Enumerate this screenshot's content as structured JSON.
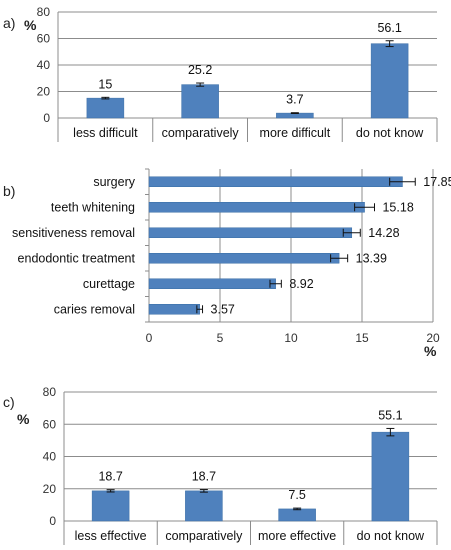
{
  "chart_data": [
    {
      "panel": "a)",
      "type": "bar",
      "orientation": "vertical",
      "categories": [
        "less difficult",
        "comparatively",
        "more difficult",
        "do not know"
      ],
      "values": [
        15,
        25.2,
        3.7,
        56.1
      ],
      "value_labels": [
        "15",
        "25.2",
        "3.7",
        "56.1"
      ],
      "error": [
        0.6,
        1.2,
        0.3,
        2.2
      ],
      "ylabel": "%",
      "ylim": [
        0,
        80
      ],
      "yticks": [
        "0",
        "20",
        "40",
        "60",
        "80"
      ],
      "grid": "horizontal"
    },
    {
      "panel": "b)",
      "type": "bar",
      "orientation": "horizontal",
      "categories": [
        "surgery",
        "teeth whitening",
        "sensitiveness removal",
        "endodontic treatment",
        "curettage",
        "caries removal"
      ],
      "values": [
        17.85,
        15.18,
        14.28,
        13.39,
        8.92,
        3.57
      ],
      "value_labels": [
        "17.85",
        "15.18",
        "14.28",
        "13.39",
        "8.92",
        "3.57"
      ],
      "error": [
        0.9,
        0.7,
        0.6,
        0.6,
        0.4,
        0.2
      ],
      "xlabel": "%",
      "xlim": [
        0,
        20
      ],
      "xticks": [
        "0",
        "5",
        "10",
        "15",
        "20"
      ],
      "grid": "vertical"
    },
    {
      "panel": "c)",
      "type": "bar",
      "orientation": "vertical",
      "categories": [
        "less effective",
        "comparatively",
        "more effective",
        "do not know"
      ],
      "values": [
        18.7,
        18.7,
        7.5,
        55.1
      ],
      "value_labels": [
        "18.7",
        "18.7",
        "7.5",
        "55.1"
      ],
      "error": [
        0.7,
        0.8,
        0.5,
        2.3
      ],
      "ylabel": "%",
      "ylim": [
        0,
        80
      ],
      "yticks": [
        "0",
        "20",
        "40",
        "60",
        "80"
      ],
      "grid": "horizontal"
    }
  ],
  "colors": {
    "bar": "#4f81bd",
    "bar_edge": "#3a6ea5",
    "grid": "#8c8c8c",
    "axis": "#8c8c8c",
    "error": "#111111"
  }
}
